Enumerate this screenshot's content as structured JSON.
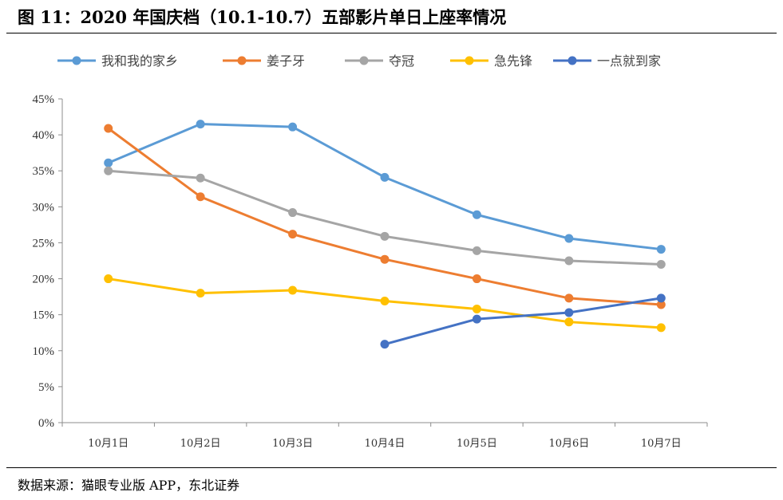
{
  "title": "图  11：2020 年国庆档（10.1-10.7）五部影片单日上座率情况",
  "source": "数据来源：猫眼专业版 APP，东北证券",
  "chart_data": {
    "type": "line",
    "title": "2020 年国庆档（10.1-10.7）五部影片单日上座率情况",
    "xlabel": "",
    "ylabel": "",
    "categories": [
      "10月1日",
      "10月2日",
      "10月3日",
      "10月4日",
      "10月5日",
      "10月6日",
      "10月7日"
    ],
    "ylim": [
      0,
      45
    ],
    "yticks": [
      0,
      5,
      10,
      15,
      20,
      25,
      30,
      35,
      40,
      45
    ],
    "ytick_labels": [
      "0%",
      "5%",
      "10%",
      "15%",
      "20%",
      "25%",
      "30%",
      "35%",
      "40%",
      "45%"
    ],
    "grid": false,
    "legend_position": "top",
    "series": [
      {
        "name": "我和我的家乡",
        "color": "#5B9BD5",
        "values": [
          36.1,
          41.5,
          41.1,
          34.1,
          28.9,
          25.6,
          24.1
        ]
      },
      {
        "name": "姜子牙",
        "color": "#ED7D31",
        "values": [
          40.9,
          31.4,
          26.2,
          22.7,
          20.0,
          17.3,
          16.4
        ]
      },
      {
        "name": "夺冠",
        "color": "#A5A5A5",
        "values": [
          35.0,
          34.0,
          29.2,
          25.9,
          23.9,
          22.5,
          22.0
        ]
      },
      {
        "name": "急先锋",
        "color": "#FFC000",
        "values": [
          20.0,
          18.0,
          18.4,
          16.9,
          15.8,
          14.0,
          13.2
        ]
      },
      {
        "name": "一点就到家",
        "color": "#4472C4",
        "values": [
          null,
          null,
          null,
          10.9,
          14.4,
          15.3,
          17.3
        ]
      }
    ]
  }
}
